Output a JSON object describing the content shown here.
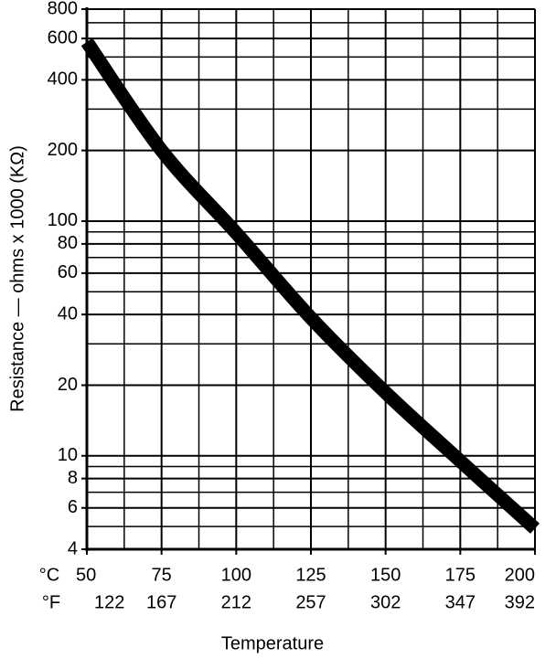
{
  "chart_data": {
    "type": "line",
    "y_label": "Resistance — ohms x 1000 (KΩ)",
    "x_label": "Temperature",
    "x": [
      50,
      75,
      100,
      125,
      150,
      175,
      200
    ],
    "series": [
      {
        "color": "#000000",
        "values": [
          580,
          200,
          89,
          38.7,
          18.6,
          9.5,
          4.9
        ]
      }
    ],
    "xlim": [
      50,
      200
    ],
    "xticks": [
      50,
      75,
      100,
      125,
      150,
      175,
      200
    ],
    "xticks_secondary": [
      122,
      167,
      212,
      257,
      302,
      347,
      392
    ],
    "xtick_row_labels": [
      "°C",
      "°F"
    ],
    "x_minor_grid": [
      62.5,
      87.5,
      112.5,
      137.5,
      162.5,
      187.5
    ],
    "ylim": [
      4,
      800
    ],
    "yticks": [
      4,
      6,
      8,
      10,
      20,
      40,
      60,
      80,
      100,
      200,
      400,
      600,
      800
    ],
    "y_minor_grid": [
      5,
      7,
      9,
      30,
      50,
      70,
      90,
      300,
      500,
      700
    ],
    "y_log": true,
    "grid": true
  }
}
